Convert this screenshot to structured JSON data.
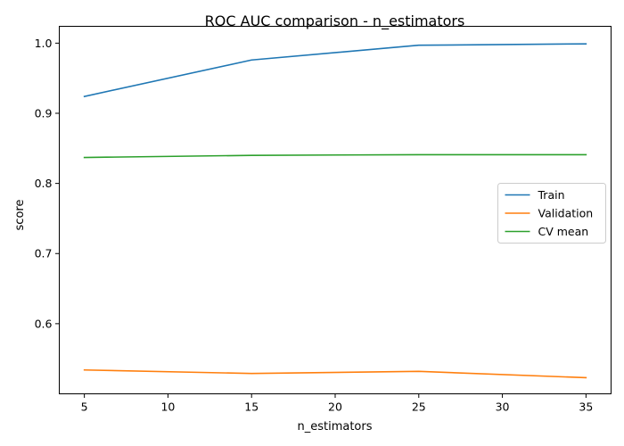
{
  "chart_data": {
    "type": "line",
    "title": "ROC AUC comparison - n_estimators",
    "xlabel": "n_estimators",
    "ylabel": "score",
    "x": [
      5,
      15,
      25,
      35
    ],
    "xticks": [
      "5",
      "10",
      "15",
      "20",
      "25",
      "30",
      "35"
    ],
    "yticks": [
      "0.6",
      "0.7",
      "0.8",
      "0.9",
      "1.0"
    ],
    "xlim": [
      3.5,
      36.5
    ],
    "ylim": [
      0.5,
      1.024
    ],
    "grid": false,
    "legend_position": "center-right",
    "series": [
      {
        "name": "Train",
        "color": "#1f77b4",
        "values": [
          0.924,
          0.976,
          0.997,
          0.999
        ]
      },
      {
        "name": "Validation",
        "color": "#ff7f0e",
        "values": [
          0.534,
          0.529,
          0.532,
          0.523
        ]
      },
      {
        "name": "CV mean",
        "color": "#2ca02c",
        "values": [
          0.837,
          0.84,
          0.841,
          0.841
        ]
      }
    ]
  }
}
